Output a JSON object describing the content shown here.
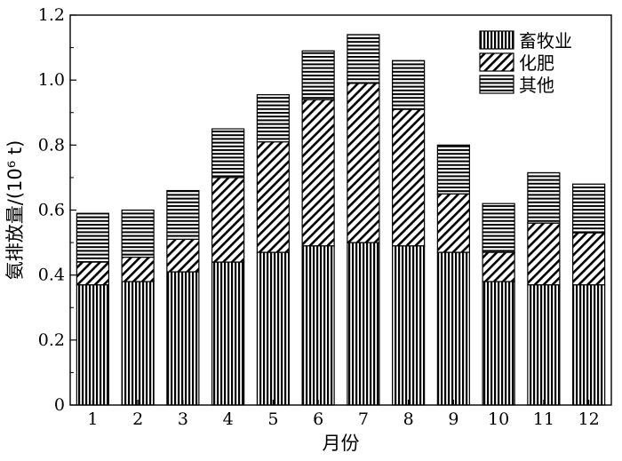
{
  "chart_data": {
    "type": "bar",
    "stacked": true,
    "categories": [
      "1",
      "2",
      "3",
      "4",
      "5",
      "6",
      "7",
      "8",
      "9",
      "10",
      "11",
      "12"
    ],
    "series": [
      {
        "name": "畜牧业",
        "values": [
          0.37,
          0.38,
          0.41,
          0.44,
          0.47,
          0.49,
          0.5,
          0.49,
          0.47,
          0.38,
          0.37,
          0.37
        ]
      },
      {
        "name": "化肥",
        "values": [
          0.07,
          0.075,
          0.1,
          0.26,
          0.34,
          0.45,
          0.49,
          0.42,
          0.18,
          0.09,
          0.19,
          0.16
        ]
      },
      {
        "name": "其他",
        "values": [
          0.15,
          0.145,
          0.15,
          0.15,
          0.145,
          0.15,
          0.15,
          0.15,
          0.15,
          0.15,
          0.155,
          0.15
        ]
      }
    ],
    "xlabel": "月份",
    "ylabel": "氨排放量/(10⁶ t)",
    "ylim": [
      0,
      1.2
    ],
    "yticks": [
      "0",
      "0.2",
      "0.4",
      "0.6",
      "0.8",
      "1.0",
      "1.2"
    ],
    "legend_position": "top-right",
    "grid": false
  }
}
